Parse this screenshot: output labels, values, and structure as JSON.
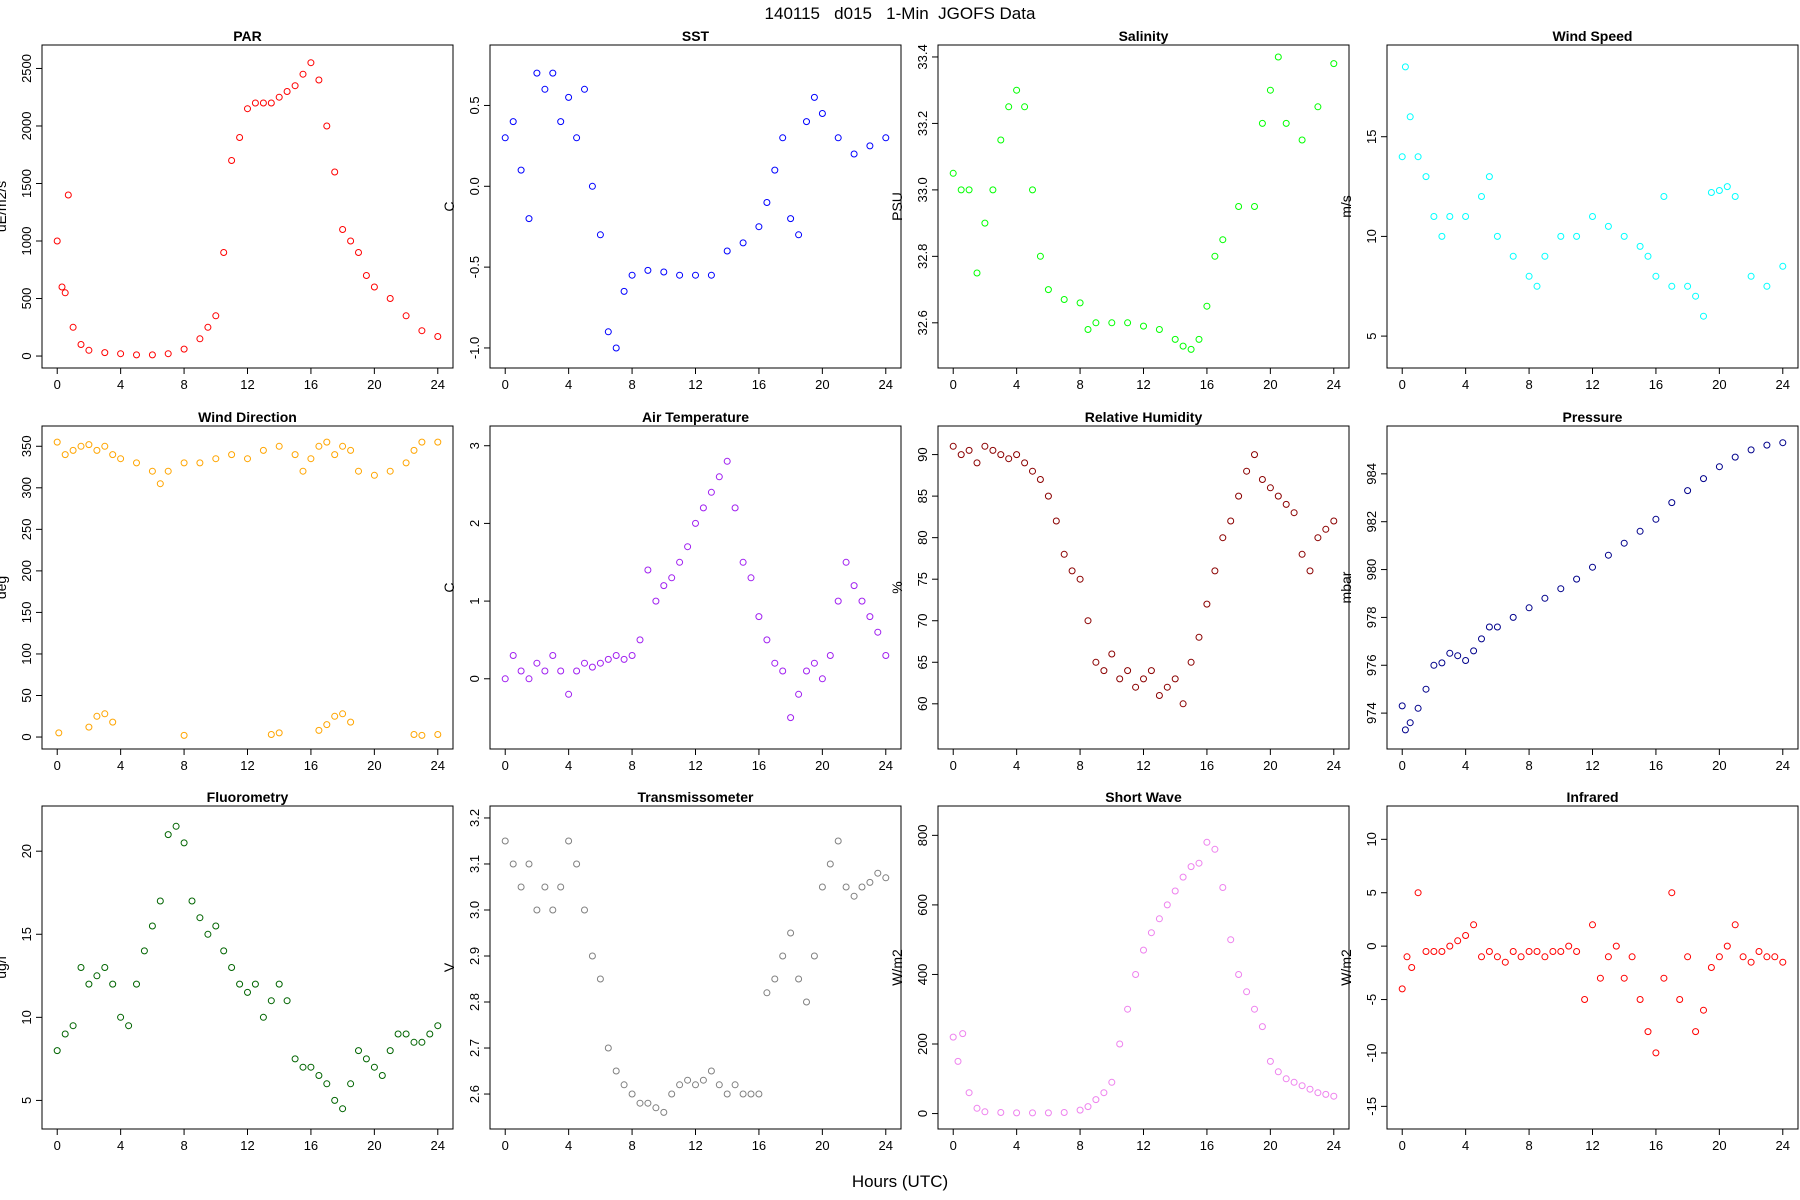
{
  "page": {
    "title": "140115   d015   1-Min  JGOFS Data",
    "xlabel": "Hours (UTC)"
  },
  "chart_data": [
    {
      "type": "scatter",
      "title": "PAR",
      "ylabel": "uE/m2/s",
      "color": "#ff0000",
      "xlim": [
        0,
        24
      ],
      "ylim": [
        0,
        2600
      ],
      "xticks": [
        0,
        4,
        8,
        12,
        16,
        20,
        24
      ],
      "yticks": [
        0,
        500,
        1000,
        1500,
        2000,
        2500
      ],
      "x": [
        0,
        0.3,
        0.5,
        0.7,
        1,
        1.5,
        2,
        3,
        4,
        5,
        6,
        7,
        8,
        9,
        9.5,
        10,
        10.5,
        11,
        11.5,
        12,
        12.5,
        13,
        13.5,
        14,
        14.5,
        15,
        15.5,
        16,
        16.5,
        17,
        17.5,
        18,
        18.5,
        19,
        19.5,
        20,
        21,
        22,
        23,
        24
      ],
      "y": [
        1000,
        600,
        550,
        1400,
        250,
        100,
        50,
        30,
        20,
        10,
        10,
        20,
        60,
        150,
        250,
        350,
        900,
        1700,
        1900,
        2150,
        2200,
        2200,
        2200,
        2250,
        2300,
        2350,
        2450,
        2550,
        2400,
        2000,
        1600,
        1100,
        1000,
        900,
        700,
        600,
        500,
        350,
        220,
        170
      ]
    },
    {
      "type": "scatter",
      "title": "SST",
      "ylabel": "C",
      "color": "#0000ff",
      "xlim": [
        0,
        24
      ],
      "ylim": [
        -1.05,
        0.8
      ],
      "xticks": [
        0,
        4,
        8,
        12,
        16,
        20,
        24
      ],
      "yticks": [
        -1.0,
        -0.5,
        0.0,
        0.5
      ],
      "ytick_labels": [
        "-1.0",
        "-0.5",
        "0.0",
        "0.5"
      ],
      "x": [
        0,
        0.5,
        1,
        1.5,
        2,
        2.5,
        3,
        3.5,
        4,
        4.5,
        5,
        5.5,
        6,
        6.5,
        7,
        7.5,
        8,
        9,
        10,
        11,
        12,
        13,
        14,
        15,
        16,
        16.5,
        17,
        17.5,
        18,
        18.5,
        19,
        19.5,
        20,
        21,
        22,
        23,
        24
      ],
      "y": [
        0.3,
        0.4,
        0.1,
        -0.2,
        0.7,
        0.6,
        0.7,
        0.4,
        0.55,
        0.3,
        0.6,
        0.0,
        -0.3,
        -0.9,
        -1.0,
        -0.65,
        -0.55,
        -0.52,
        -0.53,
        -0.55,
        -0.55,
        -0.55,
        -0.4,
        -0.35,
        -0.25,
        -0.1,
        0.1,
        0.3,
        -0.2,
        -0.3,
        0.4,
        0.55,
        0.45,
        0.3,
        0.2,
        0.25,
        0.3
      ]
    },
    {
      "type": "scatter",
      "title": "Salinity",
      "ylabel": "PSU",
      "color": "#00ff00",
      "xlim": [
        0,
        24
      ],
      "ylim": [
        32.5,
        33.4
      ],
      "xticks": [
        0,
        4,
        8,
        12,
        16,
        20,
        24
      ],
      "yticks": [
        32.6,
        32.8,
        33.0,
        33.2,
        33.4
      ],
      "ytick_labels": [
        "32.6",
        "32.8",
        "33.0",
        "33.2",
        "33.4"
      ],
      "x": [
        0,
        0.5,
        1,
        1.5,
        2,
        2.5,
        3,
        3.5,
        4,
        4.5,
        5,
        5.5,
        6,
        7,
        8,
        8.5,
        9,
        10,
        11,
        12,
        13,
        14,
        14.5,
        15,
        15.5,
        16,
        16.5,
        17,
        18,
        19,
        19.5,
        20,
        20.5,
        21,
        22,
        23,
        24
      ],
      "y": [
        33.05,
        33.0,
        33.0,
        32.75,
        32.9,
        33.0,
        33.15,
        33.25,
        33.3,
        33.25,
        33.0,
        32.8,
        32.7,
        32.67,
        32.66,
        32.58,
        32.6,
        32.6,
        32.6,
        32.59,
        32.58,
        32.55,
        32.53,
        32.52,
        32.55,
        32.65,
        32.8,
        32.85,
        32.95,
        32.95,
        33.2,
        33.3,
        33.4,
        33.2,
        33.15,
        33.25,
        33.38
      ]
    },
    {
      "type": "scatter",
      "title": "Wind Speed",
      "ylabel": "m/s",
      "color": "#00ffff",
      "xlim": [
        0,
        24
      ],
      "ylim": [
        4,
        19
      ],
      "xticks": [
        0,
        4,
        8,
        12,
        16,
        20,
        24
      ],
      "yticks": [
        5,
        10,
        15
      ],
      "x": [
        0,
        0.2,
        0.5,
        1,
        1.5,
        2,
        2.5,
        3,
        4,
        5,
        5.5,
        6,
        7,
        8,
        8.5,
        9,
        10,
        11,
        12,
        13,
        14,
        15,
        15.5,
        16,
        16.5,
        17,
        18,
        18.5,
        19,
        19.5,
        20,
        20.5,
        21,
        22,
        23,
        24
      ],
      "y": [
        14,
        18.5,
        16,
        14,
        13,
        11,
        10,
        11,
        11,
        12,
        13,
        10,
        9,
        8,
        7.5,
        9,
        10,
        10,
        11,
        10.5,
        10,
        9.5,
        9,
        8,
        12,
        7.5,
        7.5,
        7,
        6,
        12.2,
        12.3,
        12.5,
        12,
        8,
        7.5,
        8.5
      ]
    },
    {
      "type": "scatter",
      "title": "Wind Direction",
      "ylabel": "deg",
      "color": "#ffa500",
      "xlim": [
        0,
        24
      ],
      "ylim": [
        0,
        360
      ],
      "xticks": [
        0,
        4,
        8,
        12,
        16,
        20,
        24
      ],
      "yticks": [
        0,
        50,
        100,
        150,
        200,
        250,
        300,
        350
      ],
      "x": [
        0,
        0.5,
        1,
        1.5,
        2,
        2.5,
        3,
        3.5,
        4,
        5,
        6,
        6.5,
        7,
        8,
        9,
        10,
        11,
        12,
        13,
        14,
        15,
        15.5,
        16,
        16.5,
        17,
        17.5,
        18,
        18.5,
        19,
        20,
        21,
        22,
        22.5,
        23,
        24,
        0.1,
        2,
        2.5,
        3,
        3.5,
        8,
        13.5,
        14,
        16.5,
        17,
        17.5,
        18,
        18.5,
        22.5,
        23,
        24
      ],
      "y": [
        355,
        340,
        345,
        350,
        352,
        345,
        350,
        340,
        335,
        330,
        320,
        305,
        320,
        330,
        330,
        335,
        340,
        335,
        345,
        350,
        340,
        320,
        335,
        350,
        355,
        340,
        350,
        345,
        320,
        315,
        320,
        330,
        345,
        355,
        355,
        5,
        12,
        25,
        28,
        18,
        2,
        3,
        5,
        8,
        15,
        25,
        28,
        18,
        3,
        2,
        3
      ]
    },
    {
      "type": "scatter",
      "title": "Air Temperature",
      "ylabel": "C",
      "color": "#a020f0",
      "xlim": [
        0,
        24
      ],
      "ylim": [
        -0.75,
        3.1
      ],
      "xticks": [
        0,
        4,
        8,
        12,
        16,
        20,
        24
      ],
      "yticks": [
        0,
        1,
        2,
        3
      ],
      "x": [
        0,
        0.5,
        1,
        1.5,
        2,
        2.5,
        3,
        3.5,
        4,
        4.5,
        5,
        5.5,
        6,
        6.5,
        7,
        7.5,
        8,
        8.5,
        9,
        9.5,
        10,
        10.5,
        11,
        11.5,
        12,
        12.5,
        13,
        13.5,
        14,
        14.5,
        15,
        15.5,
        16,
        16.5,
        17,
        17.5,
        18,
        18.5,
        19,
        19.5,
        20,
        20.5,
        21,
        21.5,
        22,
        22.5,
        23,
        23.5,
        24
      ],
      "y": [
        0,
        0.3,
        0.1,
        0,
        0.2,
        0.1,
        0.3,
        0.1,
        -0.2,
        0.1,
        0.2,
        0.15,
        0.2,
        0.25,
        0.3,
        0.25,
        0.3,
        0.5,
        1.4,
        1.0,
        1.2,
        1.3,
        1.5,
        1.7,
        2.0,
        2.2,
        2.4,
        2.6,
        2.8,
        2.2,
        1.5,
        1.3,
        0.8,
        0.5,
        0.2,
        0.1,
        -0.5,
        -0.2,
        0.1,
        0.2,
        0.0,
        0.3,
        1.0,
        1.5,
        1.2,
        1.0,
        0.8,
        0.6,
        0.3
      ]
    },
    {
      "type": "scatter",
      "title": "Relative Humidity",
      "ylabel": "%",
      "color": "#8b0000",
      "xlim": [
        0,
        24
      ],
      "ylim": [
        56,
        92
      ],
      "xticks": [
        0,
        4,
        8,
        12,
        16,
        20,
        24
      ],
      "yticks": [
        60,
        65,
        70,
        75,
        80,
        85,
        90
      ],
      "x": [
        0,
        0.5,
        1,
        1.5,
        2,
        2.5,
        3,
        3.5,
        4,
        4.5,
        5,
        5.5,
        6,
        6.5,
        7,
        7.5,
        8,
        8.5,
        9,
        9.5,
        10,
        10.5,
        11,
        11.5,
        12,
        12.5,
        13,
        13.5,
        14,
        14.5,
        15,
        15.5,
        16,
        16.5,
        17,
        17.5,
        18,
        18.5,
        19,
        19.5,
        20,
        20.5,
        21,
        21.5,
        22,
        22.5,
        23,
        23.5,
        24
      ],
      "y": [
        91,
        90,
        90.5,
        89,
        91,
        90.5,
        90,
        89.5,
        90,
        89,
        88,
        87,
        85,
        82,
        78,
        76,
        75,
        70,
        65,
        64,
        66,
        63,
        64,
        62,
        63,
        64,
        61,
        62,
        63,
        60,
        65,
        68,
        72,
        76,
        80,
        82,
        85,
        88,
        90,
        87,
        86,
        85,
        84,
        83,
        78,
        76,
        80,
        81,
        82
      ]
    },
    {
      "type": "scatter",
      "title": "Pressure",
      "ylabel": "mbar",
      "color": "#00008b",
      "xlim": [
        0,
        24
      ],
      "ylim": [
        973,
        985.5
      ],
      "xticks": [
        0,
        4,
        8,
        12,
        16,
        20,
        24
      ],
      "yticks": [
        974,
        976,
        978,
        980,
        982,
        984
      ],
      "x": [
        0,
        0.2,
        0.5,
        1,
        1.5,
        2,
        2.5,
        3,
        3.5,
        4,
        4.5,
        5,
        5.5,
        6,
        7,
        8,
        9,
        10,
        11,
        12,
        13,
        14,
        15,
        16,
        17,
        18,
        19,
        20,
        21,
        22,
        23,
        24
      ],
      "y": [
        974.3,
        973.3,
        973.6,
        974.2,
        975.0,
        976.0,
        976.1,
        976.5,
        976.4,
        976.2,
        976.6,
        977.1,
        977.6,
        977.6,
        978.0,
        978.4,
        978.8,
        979.2,
        979.6,
        980.1,
        980.6,
        981.1,
        981.6,
        982.1,
        982.8,
        983.3,
        983.8,
        984.3,
        984.7,
        985.0,
        985.2,
        985.3
      ]
    },
    {
      "type": "scatter",
      "title": "Fluorometry",
      "ylabel": "ug/l",
      "color": "#006400",
      "xlim": [
        0,
        24
      ],
      "ylim": [
        4,
        22
      ],
      "xticks": [
        0,
        4,
        8,
        12,
        16,
        20,
        24
      ],
      "yticks": [
        5,
        10,
        15,
        20
      ],
      "x": [
        0,
        0.5,
        1,
        1.5,
        2,
        2.5,
        3,
        3.5,
        4,
        4.5,
        5,
        5.5,
        6,
        6.5,
        7,
        7.5,
        8,
        8.5,
        9,
        9.5,
        10,
        10.5,
        11,
        11.5,
        12,
        12.5,
        13,
        13.5,
        14,
        14.5,
        15,
        15.5,
        16,
        16.5,
        17,
        17.5,
        18,
        18.5,
        19,
        19.5,
        20,
        20.5,
        21,
        21.5,
        22,
        22.5,
        23,
        23.5,
        24
      ],
      "y": [
        8,
        9,
        9.5,
        13,
        12,
        12.5,
        13,
        12,
        10,
        9.5,
        12,
        14,
        15.5,
        17,
        21,
        21.5,
        20.5,
        17,
        16,
        15,
        15.5,
        14,
        13,
        12,
        11.5,
        12,
        10,
        11,
        12,
        11,
        7.5,
        7,
        7,
        6.5,
        6,
        5,
        4.5,
        6,
        8,
        7.5,
        7,
        6.5,
        8,
        9,
        9,
        8.5,
        8.5,
        9,
        9.5
      ]
    },
    {
      "type": "scatter",
      "title": "Transmissometer",
      "ylabel": "V",
      "color": "#808080",
      "xlim": [
        0,
        24
      ],
      "ylim": [
        2.55,
        3.2
      ],
      "xticks": [
        0,
        4,
        8,
        12,
        16,
        20,
        24
      ],
      "yticks": [
        2.6,
        2.7,
        2.8,
        2.9,
        3.0,
        3.1,
        3.2
      ],
      "ytick_labels": [
        "2.6",
        "2.7",
        "2.8",
        "2.9",
        "3.0",
        "3.1",
        "3.2"
      ],
      "x": [
        0,
        0.5,
        1,
        1.5,
        2,
        2.5,
        3,
        3.5,
        4,
        4.5,
        5,
        5.5,
        6,
        6.5,
        7,
        7.5,
        8,
        8.5,
        9,
        9.5,
        10,
        10.5,
        11,
        11.5,
        12,
        12.5,
        13,
        13.5,
        14,
        14.5,
        15,
        15.5,
        16,
        16.5,
        17,
        17.5,
        18,
        18.5,
        19,
        19.5,
        20,
        20.5,
        21,
        21.5,
        22,
        22.5,
        23,
        23.5,
        24
      ],
      "y": [
        3.15,
        3.1,
        3.05,
        3.1,
        3.0,
        3.05,
        3.0,
        3.05,
        3.15,
        3.1,
        3.0,
        2.9,
        2.85,
        2.7,
        2.65,
        2.62,
        2.6,
        2.58,
        2.58,
        2.57,
        2.56,
        2.6,
        2.62,
        2.63,
        2.62,
        2.63,
        2.65,
        2.62,
        2.6,
        2.62,
        2.6,
        2.6,
        2.6,
        2.82,
        2.85,
        2.9,
        2.95,
        2.85,
        2.8,
        2.9,
        3.05,
        3.1,
        3.15,
        3.05,
        3.03,
        3.05,
        3.06,
        3.08,
        3.07
      ]
    },
    {
      "type": "scatter",
      "title": "Short Wave",
      "ylabel": "W/m2",
      "color": "#ee82ee",
      "xlim": [
        0,
        24
      ],
      "ylim": [
        -10,
        850
      ],
      "xticks": [
        0,
        4,
        8,
        12,
        16,
        20,
        24
      ],
      "yticks": [
        0,
        200,
        400,
        600,
        800
      ],
      "x": [
        0,
        0.3,
        0.6,
        1,
        1.5,
        2,
        3,
        4,
        5,
        6,
        7,
        8,
        8.5,
        9,
        9.5,
        10,
        10.5,
        11,
        11.5,
        12,
        12.5,
        13,
        13.5,
        14,
        14.5,
        15,
        15.5,
        16,
        16.5,
        17,
        17.5,
        18,
        18.5,
        19,
        19.5,
        20,
        20.5,
        21,
        21.5,
        22,
        22.5,
        23,
        23.5,
        24
      ],
      "y": [
        220,
        150,
        230,
        60,
        15,
        5,
        3,
        2,
        2,
        2,
        3,
        10,
        20,
        40,
        60,
        90,
        200,
        300,
        400,
        470,
        520,
        560,
        600,
        640,
        680,
        710,
        720,
        780,
        760,
        650,
        500,
        400,
        350,
        300,
        250,
        150,
        120,
        100,
        90,
        80,
        70,
        60,
        55,
        50
      ]
    },
    {
      "type": "scatter",
      "title": "Infrared",
      "ylabel": "W/m2",
      "color": "#ff0000",
      "xlim": [
        0,
        24
      ],
      "ylim": [
        -16,
        12
      ],
      "xticks": [
        0,
        4,
        8,
        12,
        16,
        20,
        24
      ],
      "yticks": [
        -15,
        -10,
        -5,
        0,
        5,
        10
      ],
      "x": [
        0,
        0.3,
        0.6,
        1,
        1.5,
        2,
        2.5,
        3,
        3.5,
        4,
        4.5,
        5,
        5.5,
        6,
        6.5,
        7,
        7.5,
        8,
        8.5,
        9,
        9.5,
        10,
        10.5,
        11,
        11.5,
        12,
        12.5,
        13,
        13.5,
        14,
        14.5,
        15,
        15.5,
        16,
        16.5,
        17,
        17.5,
        18,
        18.5,
        19,
        19.5,
        20,
        20.5,
        21,
        21.5,
        22,
        22.5,
        23,
        23.5,
        24
      ],
      "y": [
        -4,
        -1,
        -2,
        5,
        -0.5,
        -0.5,
        -0.5,
        0,
        0.5,
        1,
        2,
        -1,
        -0.5,
        -1,
        -1.5,
        -0.5,
        -1,
        -0.5,
        -0.5,
        -1,
        -0.5,
        -0.5,
        0,
        -0.5,
        -5,
        2,
        -3,
        -1,
        0,
        -3,
        -1,
        -5,
        -8,
        -10,
        -3,
        5,
        -5,
        -1,
        -8,
        -6,
        -2,
        -1,
        0,
        2,
        -1,
        -1.5,
        -0.5,
        -1,
        -1,
        -1.5
      ]
    }
  ]
}
